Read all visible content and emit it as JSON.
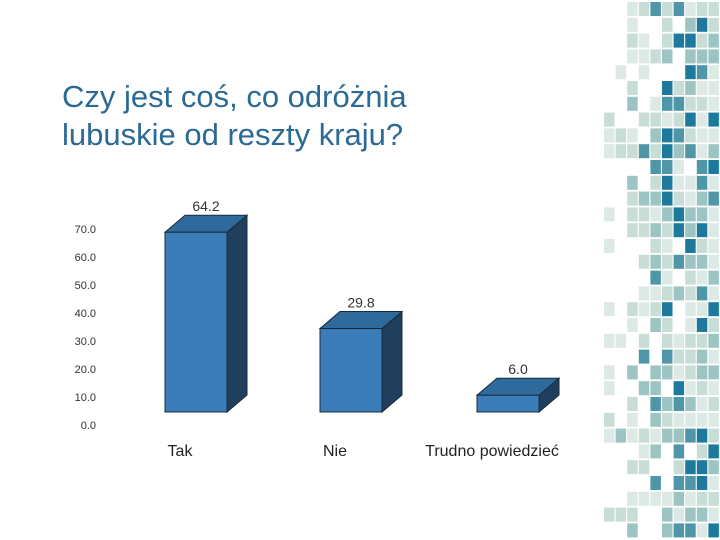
{
  "chart_data": {
    "type": "bar3d",
    "title": "Czy jest coś, co odróżnia lubuskie od reszty kraju?",
    "categories": [
      "Tak",
      "Nie",
      "Trudno powiedzieć"
    ],
    "values": [
      64.2,
      29.8,
      6
    ],
    "value_labels": [
      "64.2",
      "29.8",
      "6.0"
    ],
    "color": "#3a7db8",
    "ylim": [
      0,
      70
    ],
    "yticks": [
      {
        "value": 0,
        "label": "0.0"
      },
      {
        "value": 10,
        "label": "10.0"
      },
      {
        "value": 20,
        "label": "20.0"
      },
      {
        "value": 30,
        "label": "30.0"
      },
      {
        "value": 40,
        "label": "40.0"
      },
      {
        "value": 50,
        "label": "50.0"
      },
      {
        "value": 60,
        "label": "60.0"
      },
      {
        "value": 70,
        "label": "70.0"
      }
    ],
    "grid": false
  }
}
